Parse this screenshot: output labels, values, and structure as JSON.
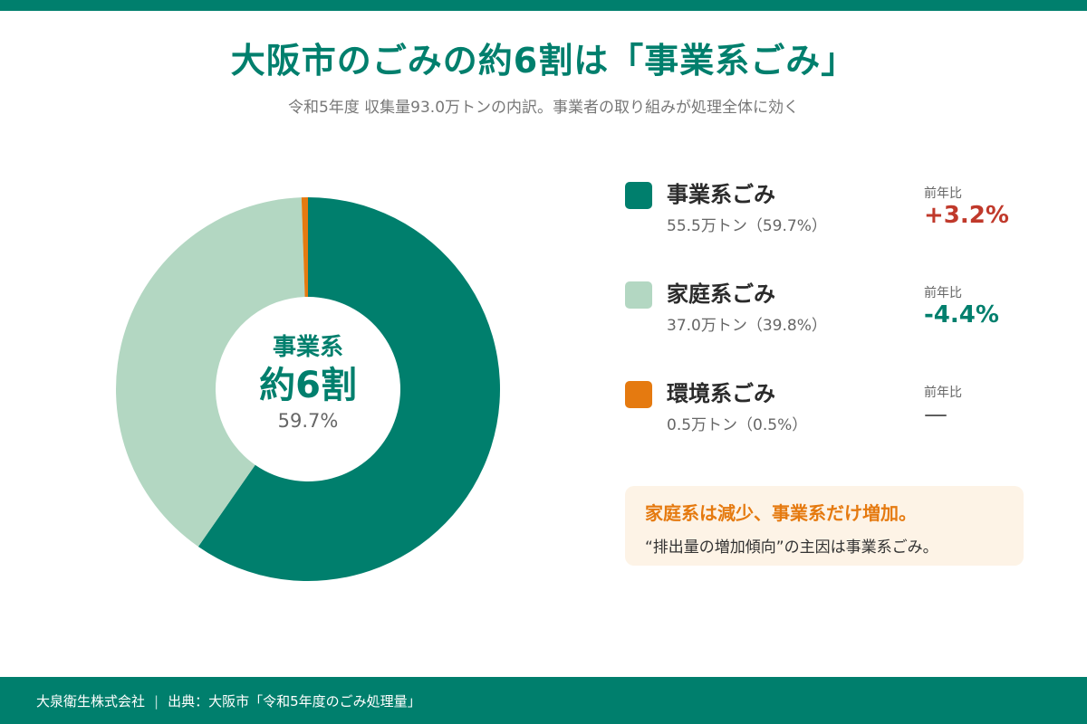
{
  "header": {
    "title": "大阪市のごみの約6割は「事業系ごみ」",
    "subtitle": "令和5年度 収集量93.0万トンの内訳。事業者の取り組みが処理全体に効く"
  },
  "colors": {
    "accent": "#007f6d",
    "light_green": "#b3d7c2",
    "orange": "#e57a10",
    "up_red": "#c0392b",
    "note_bg": "#fdf3e6"
  },
  "center": {
    "line1": "事業系",
    "line2": "約6割",
    "line3": "59.7%"
  },
  "legend": {
    "yoy_label": "前年比",
    "items": [
      {
        "name": "事業系ごみ",
        "detail": "55.5万トン（59.7%）",
        "yoy": "+3.2%",
        "yoy_color": "#c0392b",
        "color": "#007f6d"
      },
      {
        "name": "家庭系ごみ",
        "detail": "37.0万トン（39.8%）",
        "yoy": "-4.4%",
        "yoy_color": "#007f6d",
        "color": "#b3d7c2"
      },
      {
        "name": "環境系ごみ",
        "detail": "0.5万トン（0.5%）",
        "yoy": "—",
        "yoy_color": "#555555",
        "color": "#e57a10"
      }
    ]
  },
  "note": {
    "headline": "家庭系は減少、事業系だけ増加。",
    "body": "“排出量の増加傾向”の主因は事業系ごみ。"
  },
  "footer": {
    "company": "大泉衛生株式会社",
    "separator": "|",
    "source": "出典：大阪市「令和5年度のごみ処理量」"
  },
  "chart_data": {
    "type": "pie",
    "categories": [
      "事業系ごみ",
      "家庭系ごみ",
      "環境系ごみ"
    ],
    "values": [
      55.5,
      37.0,
      0.5
    ],
    "percentages": [
      59.7,
      39.8,
      0.5
    ],
    "colors": [
      "#007f6d",
      "#b3d7c2",
      "#e57a10"
    ],
    "donut": true
  }
}
